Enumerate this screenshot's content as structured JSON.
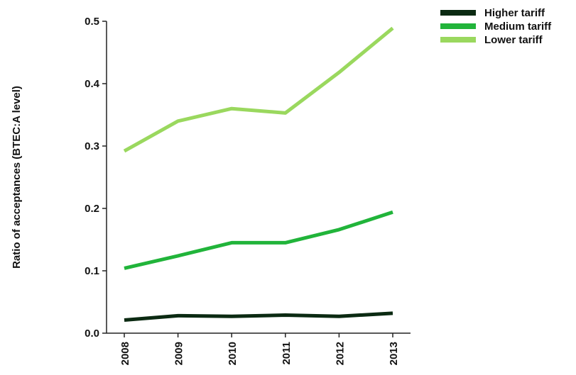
{
  "chart_data": {
    "type": "line",
    "title": "",
    "xlabel": "",
    "ylabel": "Ratio of acceptances (BTEC:A level)",
    "x": [
      "2008",
      "2009",
      "2010",
      "2011",
      "2012",
      "2013"
    ],
    "ylim": [
      0.0,
      0.5
    ],
    "yticks": [
      "0.0",
      "0.1",
      "0.2",
      "0.3",
      "0.4",
      "0.5"
    ],
    "grid": false,
    "legend_position": "top-right",
    "series": [
      {
        "name": "Higher tariff",
        "color": "#0b2a12",
        "values": [
          0.021,
          0.028,
          0.027,
          0.029,
          0.027,
          0.032
        ]
      },
      {
        "name": "Medium tariff",
        "color": "#21b43a",
        "values": [
          0.104,
          0.124,
          0.145,
          0.145,
          0.166,
          0.194
        ]
      },
      {
        "name": "Lower tariff",
        "color": "#9ad85e",
        "values": [
          0.292,
          0.34,
          0.36,
          0.353,
          0.418,
          0.489
        ]
      }
    ]
  }
}
